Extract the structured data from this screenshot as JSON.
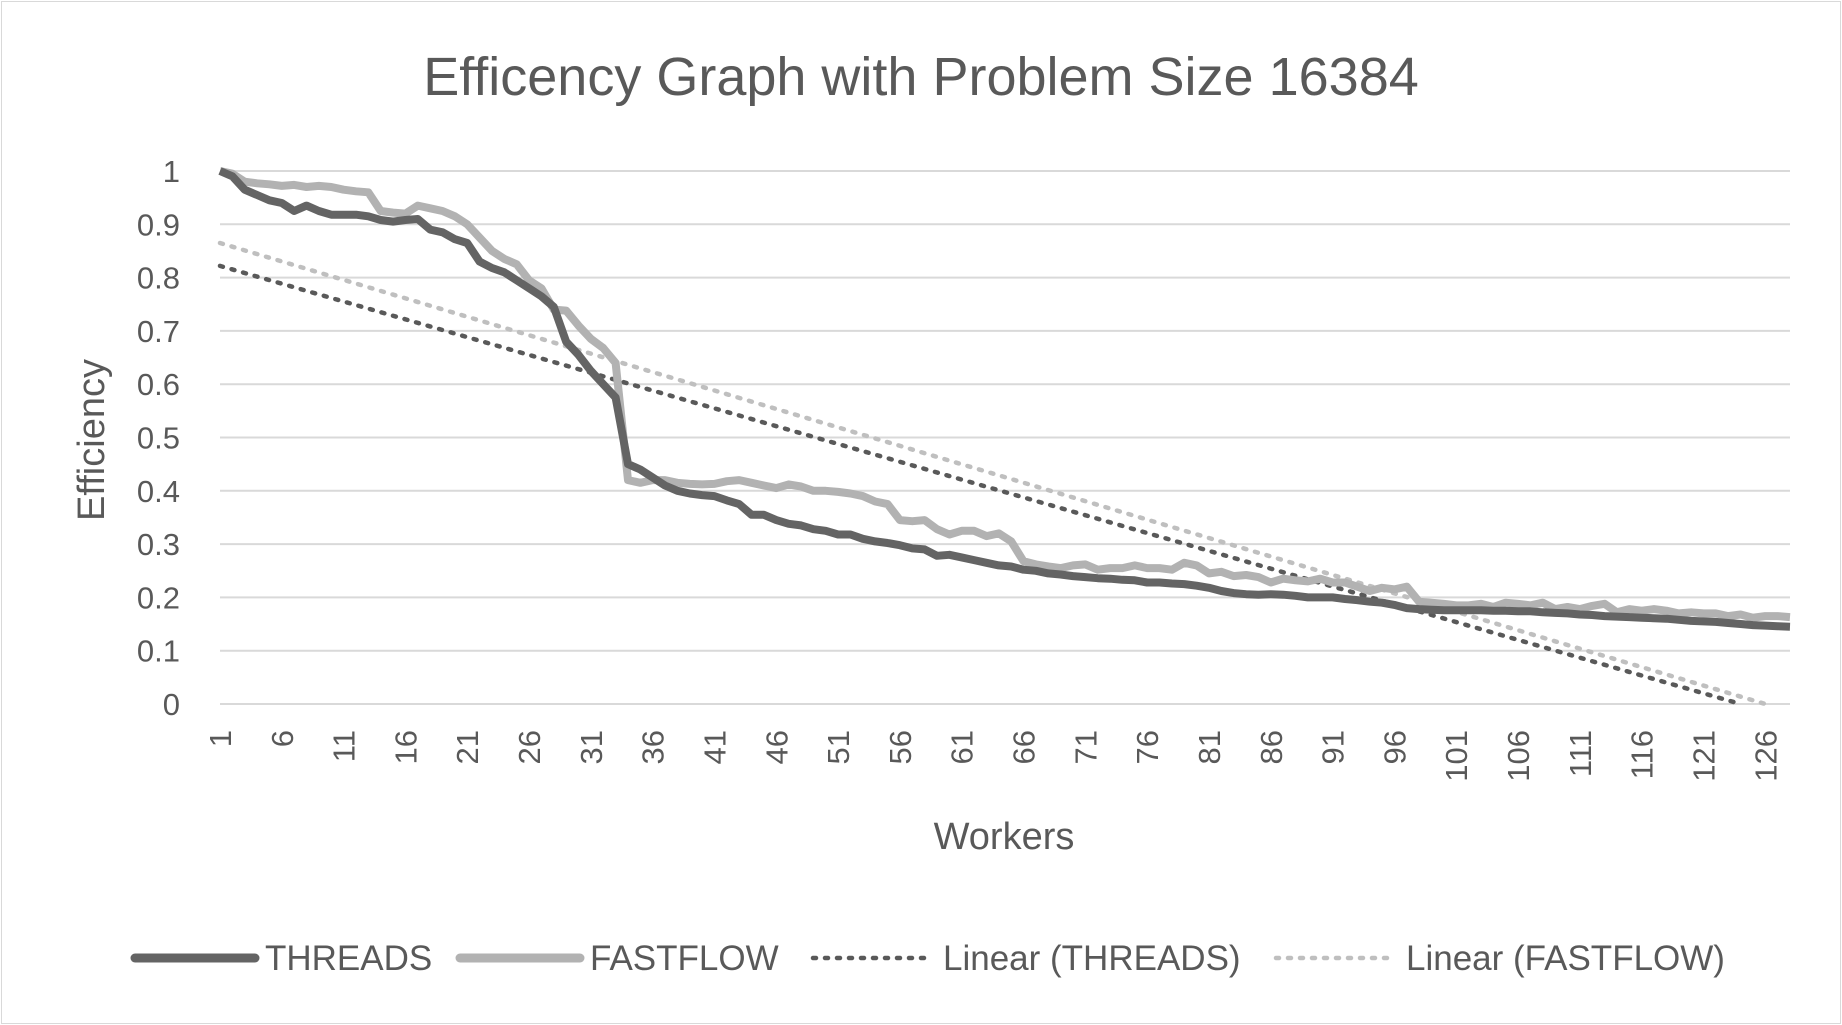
{
  "chart_data": {
    "type": "line",
    "title": "Efficency Graph with Problem Size 16384",
    "xlabel": "Workers",
    "ylabel": "Efficiency",
    "ylim": [
      0,
      1
    ],
    "yticks": [
      "0",
      "0.1",
      "0.2",
      "0.3",
      "0.4",
      "0.5",
      "0.6",
      "0.7",
      "0.8",
      "0.9",
      "1"
    ],
    "xlim": [
      1,
      128
    ],
    "xticks": [
      1,
      6,
      11,
      16,
      21,
      26,
      31,
      36,
      41,
      46,
      51,
      56,
      61,
      66,
      71,
      76,
      81,
      86,
      91,
      96,
      101,
      106,
      111,
      116,
      121,
      126
    ],
    "grid": true,
    "legend_position": "bottom",
    "series": [
      {
        "name": "THREADS",
        "style": "solid",
        "color": "#646464",
        "points": [
          [
            1,
            1.0
          ],
          [
            2,
            0.99
          ],
          [
            3,
            0.965
          ],
          [
            4,
            0.955
          ],
          [
            5,
            0.945
          ],
          [
            6,
            0.94
          ],
          [
            7,
            0.925
          ],
          [
            8,
            0.935
          ],
          [
            9,
            0.925
          ],
          [
            10,
            0.918
          ],
          [
            11,
            0.918
          ],
          [
            12,
            0.918
          ],
          [
            13,
            0.915
          ],
          [
            14,
            0.908
          ],
          [
            15,
            0.905
          ],
          [
            16,
            0.908
          ],
          [
            17,
            0.91
          ],
          [
            18,
            0.89
          ],
          [
            19,
            0.885
          ],
          [
            20,
            0.872
          ],
          [
            21,
            0.865
          ],
          [
            22,
            0.83
          ],
          [
            23,
            0.818
          ],
          [
            24,
            0.81
          ],
          [
            25,
            0.795
          ],
          [
            26,
            0.78
          ],
          [
            27,
            0.765
          ],
          [
            28,
            0.745
          ],
          [
            29,
            0.68
          ],
          [
            30,
            0.655
          ],
          [
            31,
            0.625
          ],
          [
            32,
            0.6
          ],
          [
            33,
            0.575
          ],
          [
            34,
            0.45
          ],
          [
            35,
            0.44
          ],
          [
            36,
            0.425
          ],
          [
            37,
            0.41
          ],
          [
            38,
            0.4
          ],
          [
            39,
            0.395
          ],
          [
            40,
            0.392
          ],
          [
            41,
            0.39
          ],
          [
            42,
            0.382
          ],
          [
            43,
            0.375
          ],
          [
            44,
            0.355
          ],
          [
            45,
            0.355
          ],
          [
            46,
            0.345
          ],
          [
            47,
            0.338
          ],
          [
            48,
            0.335
          ],
          [
            49,
            0.328
          ],
          [
            50,
            0.325
          ],
          [
            51,
            0.318
          ],
          [
            52,
            0.318
          ],
          [
            53,
            0.31
          ],
          [
            54,
            0.305
          ],
          [
            55,
            0.302
          ],
          [
            56,
            0.298
          ],
          [
            57,
            0.292
          ],
          [
            58,
            0.29
          ],
          [
            59,
            0.278
          ],
          [
            60,
            0.28
          ],
          [
            61,
            0.275
          ],
          [
            62,
            0.27
          ],
          [
            63,
            0.265
          ],
          [
            64,
            0.26
          ],
          [
            65,
            0.258
          ],
          [
            66,
            0.252
          ],
          [
            67,
            0.25
          ],
          [
            68,
            0.245
          ],
          [
            69,
            0.243
          ],
          [
            70,
            0.24
          ],
          [
            71,
            0.238
          ],
          [
            72,
            0.236
          ],
          [
            73,
            0.235
          ],
          [
            74,
            0.233
          ],
          [
            75,
            0.232
          ],
          [
            76,
            0.228
          ],
          [
            77,
            0.228
          ],
          [
            78,
            0.226
          ],
          [
            79,
            0.225
          ],
          [
            80,
            0.222
          ],
          [
            81,
            0.218
          ],
          [
            82,
            0.212
          ],
          [
            83,
            0.208
          ],
          [
            84,
            0.206
          ],
          [
            85,
            0.205
          ],
          [
            86,
            0.206
          ],
          [
            87,
            0.205
          ],
          [
            88,
            0.203
          ],
          [
            89,
            0.2
          ],
          [
            90,
            0.2
          ],
          [
            91,
            0.2
          ],
          [
            92,
            0.197
          ],
          [
            93,
            0.195
          ],
          [
            94,
            0.192
          ],
          [
            95,
            0.19
          ],
          [
            96,
            0.186
          ],
          [
            97,
            0.18
          ],
          [
            98,
            0.178
          ],
          [
            99,
            0.177
          ],
          [
            100,
            0.176
          ],
          [
            101,
            0.176
          ],
          [
            102,
            0.176
          ],
          [
            103,
            0.176
          ],
          [
            104,
            0.175
          ],
          [
            105,
            0.175
          ],
          [
            106,
            0.174
          ],
          [
            107,
            0.174
          ],
          [
            108,
            0.172
          ],
          [
            109,
            0.171
          ],
          [
            110,
            0.17
          ],
          [
            111,
            0.168
          ],
          [
            112,
            0.167
          ],
          [
            113,
            0.165
          ],
          [
            114,
            0.164
          ],
          [
            115,
            0.163
          ],
          [
            116,
            0.162
          ],
          [
            117,
            0.161
          ],
          [
            118,
            0.16
          ],
          [
            119,
            0.158
          ],
          [
            120,
            0.156
          ],
          [
            121,
            0.155
          ],
          [
            122,
            0.154
          ],
          [
            123,
            0.152
          ],
          [
            124,
            0.15
          ],
          [
            125,
            0.148
          ],
          [
            126,
            0.147
          ],
          [
            127,
            0.146
          ],
          [
            128,
            0.145
          ]
        ]
      },
      {
        "name": "FASTFLOW",
        "style": "solid",
        "color": "#b2b2b2",
        "points": [
          [
            1,
            1.0
          ],
          [
            2,
            0.995
          ],
          [
            3,
            0.98
          ],
          [
            4,
            0.977
          ],
          [
            5,
            0.975
          ],
          [
            6,
            0.972
          ],
          [
            7,
            0.974
          ],
          [
            8,
            0.97
          ],
          [
            9,
            0.972
          ],
          [
            10,
            0.97
          ],
          [
            11,
            0.965
          ],
          [
            12,
            0.962
          ],
          [
            13,
            0.96
          ],
          [
            14,
            0.925
          ],
          [
            15,
            0.922
          ],
          [
            16,
            0.92
          ],
          [
            17,
            0.935
          ],
          [
            18,
            0.93
          ],
          [
            19,
            0.925
          ],
          [
            20,
            0.915
          ],
          [
            21,
            0.9
          ],
          [
            22,
            0.875
          ],
          [
            23,
            0.85
          ],
          [
            24,
            0.835
          ],
          [
            25,
            0.825
          ],
          [
            26,
            0.795
          ],
          [
            27,
            0.78
          ],
          [
            28,
            0.74
          ],
          [
            29,
            0.738
          ],
          [
            30,
            0.71
          ],
          [
            31,
            0.685
          ],
          [
            32,
            0.668
          ],
          [
            33,
            0.64
          ],
          [
            34,
            0.42
          ],
          [
            35,
            0.415
          ],
          [
            36,
            0.42
          ],
          [
            37,
            0.42
          ],
          [
            38,
            0.415
          ],
          [
            39,
            0.413
          ],
          [
            40,
            0.412
          ],
          [
            41,
            0.413
          ],
          [
            42,
            0.418
          ],
          [
            43,
            0.42
          ],
          [
            44,
            0.415
          ],
          [
            45,
            0.41
          ],
          [
            46,
            0.405
          ],
          [
            47,
            0.412
          ],
          [
            48,
            0.408
          ],
          [
            49,
            0.4
          ],
          [
            50,
            0.4
          ],
          [
            51,
            0.398
          ],
          [
            52,
            0.395
          ],
          [
            53,
            0.39
          ],
          [
            54,
            0.38
          ],
          [
            55,
            0.375
          ],
          [
            56,
            0.345
          ],
          [
            57,
            0.343
          ],
          [
            58,
            0.345
          ],
          [
            59,
            0.328
          ],
          [
            60,
            0.318
          ],
          [
            61,
            0.325
          ],
          [
            62,
            0.325
          ],
          [
            63,
            0.315
          ],
          [
            64,
            0.32
          ],
          [
            65,
            0.305
          ],
          [
            66,
            0.268
          ],
          [
            67,
            0.262
          ],
          [
            68,
            0.258
          ],
          [
            69,
            0.255
          ],
          [
            70,
            0.26
          ],
          [
            71,
            0.262
          ],
          [
            72,
            0.252
          ],
          [
            73,
            0.255
          ],
          [
            74,
            0.255
          ],
          [
            75,
            0.26
          ],
          [
            76,
            0.255
          ],
          [
            77,
            0.255
          ],
          [
            78,
            0.252
          ],
          [
            79,
            0.265
          ],
          [
            80,
            0.26
          ],
          [
            81,
            0.245
          ],
          [
            82,
            0.248
          ],
          [
            83,
            0.24
          ],
          [
            84,
            0.242
          ],
          [
            85,
            0.238
          ],
          [
            86,
            0.228
          ],
          [
            87,
            0.235
          ],
          [
            88,
            0.232
          ],
          [
            89,
            0.23
          ],
          [
            90,
            0.235
          ],
          [
            91,
            0.228
          ],
          [
            92,
            0.228
          ],
          [
            93,
            0.22
          ],
          [
            94,
            0.212
          ],
          [
            95,
            0.218
          ],
          [
            96,
            0.215
          ],
          [
            97,
            0.22
          ],
          [
            98,
            0.192
          ],
          [
            99,
            0.19
          ],
          [
            100,
            0.188
          ],
          [
            101,
            0.185
          ],
          [
            102,
            0.185
          ],
          [
            103,
            0.188
          ],
          [
            104,
            0.182
          ],
          [
            105,
            0.19
          ],
          [
            106,
            0.188
          ],
          [
            107,
            0.185
          ],
          [
            108,
            0.19
          ],
          [
            109,
            0.178
          ],
          [
            110,
            0.182
          ],
          [
            111,
            0.178
          ],
          [
            112,
            0.184
          ],
          [
            113,
            0.188
          ],
          [
            114,
            0.172
          ],
          [
            115,
            0.178
          ],
          [
            116,
            0.175
          ],
          [
            117,
            0.178
          ],
          [
            118,
            0.175
          ],
          [
            119,
            0.17
          ],
          [
            120,
            0.172
          ],
          [
            121,
            0.17
          ],
          [
            122,
            0.17
          ],
          [
            123,
            0.165
          ],
          [
            124,
            0.168
          ],
          [
            125,
            0.162
          ],
          [
            126,
            0.165
          ],
          [
            127,
            0.165
          ],
          [
            128,
            0.163
          ]
        ]
      },
      {
        "name": "Linear (THREADS)",
        "style": "dotted",
        "color": "#595959",
        "points": [
          [
            1,
            0.822
          ],
          [
            124,
            0.0
          ]
        ]
      },
      {
        "name": "Linear (FASTFLOW)",
        "style": "dotted",
        "color": "#bfbfbf",
        "points": [
          [
            1,
            0.865
          ],
          [
            126,
            0.0
          ]
        ]
      }
    ]
  }
}
